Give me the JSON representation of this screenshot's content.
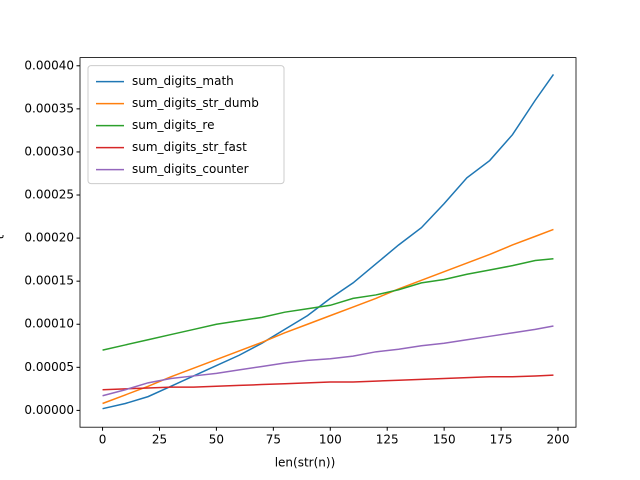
{
  "chart_data": {
    "type": "line",
    "x_label": "len(str(n))",
    "y_label": "t",
    "x": [
      0,
      10,
      20,
      30,
      40,
      50,
      60,
      70,
      80,
      90,
      100,
      110,
      120,
      130,
      140,
      150,
      160,
      170,
      180,
      190,
      198
    ],
    "series": [
      {
        "name": "sum_digits_math",
        "color": "#1f77b4",
        "values": [
          2e-06,
          8e-06,
          1.6e-05,
          2.8e-05,
          4e-05,
          5.2e-05,
          6.4e-05,
          7.8e-05,
          9.4e-05,
          0.00011,
          0.00013,
          0.000148,
          0.00017,
          0.000192,
          0.000212,
          0.00024,
          0.00027,
          0.00029,
          0.00032,
          0.00036,
          0.00039
        ]
      },
      {
        "name": "sum_digits_str_dumb",
        "color": "#ff7f0e",
        "values": [
          8e-06,
          1.8e-05,
          2.8e-05,
          3.9e-05,
          4.9e-05,
          5.9e-05,
          6.9e-05,
          7.9e-05,
          9e-05,
          0.0001,
          0.00011,
          0.00012,
          0.00013,
          0.000141,
          0.000151,
          0.000161,
          0.000171,
          0.000181,
          0.000192,
          0.000202,
          0.00021
        ]
      },
      {
        "name": "sum_digits_re",
        "color": "#2ca02c",
        "values": [
          7e-05,
          7.6e-05,
          8.2e-05,
          8.8e-05,
          9.4e-05,
          0.0001,
          0.000104,
          0.000108,
          0.000114,
          0.000118,
          0.000122,
          0.00013,
          0.000134,
          0.00014,
          0.000148,
          0.000152,
          0.000158,
          0.000163,
          0.000168,
          0.000174,
          0.000176
        ]
      },
      {
        "name": "sum_digits_str_fast",
        "color": "#d62728",
        "values": [
          2.4e-05,
          2.5e-05,
          2.6e-05,
          2.7e-05,
          2.7e-05,
          2.8e-05,
          2.9e-05,
          3e-05,
          3.1e-05,
          3.2e-05,
          3.3e-05,
          3.3e-05,
          3.4e-05,
          3.5e-05,
          3.6e-05,
          3.7e-05,
          3.8e-05,
          3.9e-05,
          3.9e-05,
          4e-05,
          4.1e-05
        ]
      },
      {
        "name": "sum_digits_counter",
        "color": "#9467bd",
        "values": [
          1.7e-05,
          2.4e-05,
          3.2e-05,
          3.7e-05,
          4e-05,
          4.3e-05,
          4.7e-05,
          5.1e-05,
          5.5e-05,
          5.8e-05,
          6e-05,
          6.3e-05,
          6.8e-05,
          7.1e-05,
          7.5e-05,
          7.8e-05,
          8.2e-05,
          8.6e-05,
          9e-05,
          9.4e-05,
          9.8e-05
        ]
      }
    ],
    "xlim": [
      -9.9,
      207.9
    ],
    "xticks": [
      0,
      25,
      50,
      75,
      100,
      125,
      150,
      175,
      200
    ],
    "ylim": [
      -1.95e-05,
      0.0004095
    ],
    "yticks": [
      {
        "value": 0,
        "label": "0.00000"
      },
      {
        "value": 5e-05,
        "label": "0.00005"
      },
      {
        "value": 0.0001,
        "label": "0.00010"
      },
      {
        "value": 0.00015,
        "label": "0.00015"
      },
      {
        "value": 0.0002,
        "label": "0.00020"
      },
      {
        "value": 0.00025,
        "label": "0.00025"
      },
      {
        "value": 0.0003,
        "label": "0.00030"
      },
      {
        "value": 0.00035,
        "label": "0.00035"
      },
      {
        "value": 0.0004,
        "label": "0.00040"
      }
    ],
    "legend": "upper left"
  }
}
